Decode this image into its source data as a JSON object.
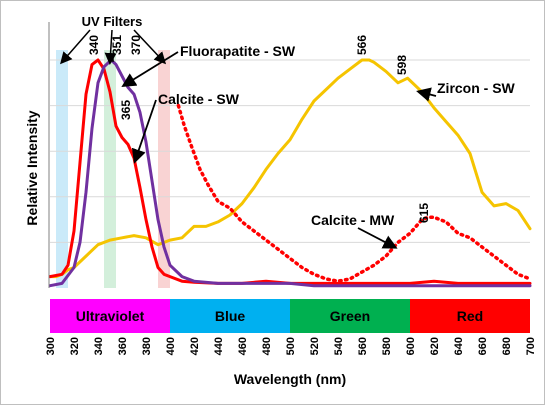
{
  "chart_data": {
    "type": "line",
    "xlabel": "Wavelength (nm)",
    "ylabel": "Relative Intensity",
    "xlim": [
      300,
      700
    ],
    "ylim": [
      0,
      1
    ],
    "x_ticks": [
      300,
      320,
      340,
      360,
      380,
      400,
      420,
      440,
      460,
      480,
      500,
      520,
      540,
      560,
      580,
      600,
      620,
      640,
      660,
      680,
      700
    ],
    "grid": "horizontal",
    "colors": {
      "zircon": "#F5C400",
      "calcite": "#FF0000",
      "fluorapatite": "#7030A0",
      "uv_filter_blue": "#BDE5F8",
      "uv_filter_green": "#C8EBD2",
      "uv_filter_red": "#F7C8C8"
    },
    "bands": [
      {
        "label": "Ultraviolet",
        "start": 300,
        "end": 400,
        "color": "#FF00FF"
      },
      {
        "label": "Blue",
        "start": 400,
        "end": 500,
        "color": "#00B0F0"
      },
      {
        "label": "Green",
        "start": 500,
        "end": 600,
        "color": "#00B050"
      },
      {
        "label": "Red",
        "start": 600,
        "end": 700,
        "color": "#FF0000"
      }
    ],
    "uv_filters": {
      "label": "UV Filters",
      "regions": [
        {
          "start": 305,
          "end": 315,
          "color": "#BDE5F8"
        },
        {
          "start": 345,
          "end": 355,
          "color": "#C8EBD2"
        },
        {
          "start": 390,
          "end": 400,
          "color": "#F7C8C8"
        }
      ]
    },
    "series": [
      {
        "name": "Zircon - SW",
        "style": "solid",
        "color": "#F5C400",
        "x": [
          300,
          305,
          310,
          315,
          320,
          330,
          340,
          350,
          360,
          370,
          380,
          390,
          400,
          410,
          420,
          430,
          440,
          450,
          460,
          470,
          480,
          490,
          500,
          510,
          520,
          530,
          540,
          550,
          560,
          566,
          570,
          580,
          590,
          598,
          600,
          610,
          620,
          630,
          640,
          650,
          660,
          670,
          680,
          690,
          700
        ],
        "y": [
          0.05,
          0.05,
          0.06,
          0.08,
          0.09,
          0.14,
          0.19,
          0.21,
          0.22,
          0.23,
          0.22,
          0.19,
          0.21,
          0.22,
          0.27,
          0.27,
          0.29,
          0.32,
          0.37,
          0.44,
          0.52,
          0.59,
          0.65,
          0.74,
          0.82,
          0.87,
          0.92,
          0.96,
          1.0,
          1.0,
          0.99,
          0.95,
          0.9,
          0.92,
          0.91,
          0.86,
          0.79,
          0.73,
          0.67,
          0.59,
          0.42,
          0.36,
          0.37,
          0.34,
          0.26
        ]
      },
      {
        "name": "Calcite - SW",
        "style": "solid",
        "color": "#FF0000",
        "x": [
          300,
          310,
          315,
          320,
          325,
          330,
          335,
          340,
          345,
          350,
          355,
          360,
          365,
          370,
          375,
          380,
          385,
          390,
          395,
          400,
          410,
          420,
          440,
          460,
          480,
          500,
          520,
          540,
          560,
          580,
          600,
          620,
          640,
          660,
          680,
          700
        ],
        "y": [
          0.05,
          0.06,
          0.1,
          0.25,
          0.55,
          0.85,
          0.98,
          1.0,
          0.96,
          0.86,
          0.71,
          0.66,
          0.63,
          0.57,
          0.44,
          0.3,
          0.18,
          0.09,
          0.06,
          0.05,
          0.03,
          0.025,
          0.02,
          0.02,
          0.03,
          0.02,
          0.02,
          0.02,
          0.02,
          0.02,
          0.02,
          0.03,
          0.02,
          0.02,
          0.02,
          0.02
        ]
      },
      {
        "name": "Fluorapatite - SW",
        "style": "solid",
        "color": "#7030A0",
        "x": [
          300,
          310,
          320,
          325,
          330,
          335,
          340,
          345,
          351,
          355,
          360,
          365,
          370,
          375,
          380,
          385,
          390,
          395,
          400,
          410,
          420,
          440,
          460,
          480,
          500,
          520,
          540,
          560,
          580,
          600,
          620,
          640,
          660,
          680,
          700
        ],
        "y": [
          0.01,
          0.02,
          0.09,
          0.2,
          0.42,
          0.7,
          0.9,
          0.97,
          1.0,
          0.98,
          0.93,
          0.88,
          0.85,
          0.77,
          0.64,
          0.47,
          0.3,
          0.18,
          0.1,
          0.05,
          0.03,
          0.02,
          0.02,
          0.02,
          0.02,
          0.01,
          0.01,
          0.01,
          0.01,
          0.01,
          0.01,
          0.01,
          0.01,
          0.01,
          0.01
        ]
      },
      {
        "name": "Calcite - MW",
        "style": "dotted",
        "color": "#FF0000",
        "x": [
          407,
          412,
          418,
          425,
          432,
          440,
          450,
          460,
          470,
          480,
          490,
          500,
          510,
          520,
          530,
          540,
          550,
          560,
          570,
          580,
          590,
          600,
          610,
          615,
          620,
          630,
          640,
          650,
          660,
          670,
          680,
          690,
          700
        ],
        "y": [
          0.8,
          0.71,
          0.62,
          0.52,
          0.45,
          0.38,
          0.35,
          0.29,
          0.25,
          0.21,
          0.17,
          0.13,
          0.09,
          0.06,
          0.04,
          0.03,
          0.04,
          0.07,
          0.1,
          0.14,
          0.2,
          0.24,
          0.3,
          0.31,
          0.31,
          0.29,
          0.24,
          0.22,
          0.18,
          0.14,
          0.1,
          0.06,
          0.04
        ]
      }
    ],
    "peaks": [
      {
        "label": "340",
        "x": 340,
        "y": 1.0
      },
      {
        "label": "351",
        "x": 351,
        "y": 1.0
      },
      {
        "label": "370",
        "x": 370,
        "y": 0.86
      },
      {
        "label": "365",
        "x": 365,
        "y": 0.63
      },
      {
        "label": "566",
        "x": 566,
        "y": 1.0
      },
      {
        "label": "598",
        "x": 598,
        "y": 0.92
      },
      {
        "label": "615",
        "x": 615,
        "y": 0.31
      }
    ],
    "annotations": [
      {
        "label": "Fluorapatite - SW",
        "target_x": 362,
        "target_y": 0.89
      },
      {
        "label": "Calcite - SW",
        "target_x": 371,
        "target_y": 0.56
      },
      {
        "label": "Zircon - SW",
        "target_x": 608,
        "target_y": 0.86
      },
      {
        "label": "Calcite - MW",
        "target_x": 587,
        "target_y": 0.18
      }
    ]
  }
}
